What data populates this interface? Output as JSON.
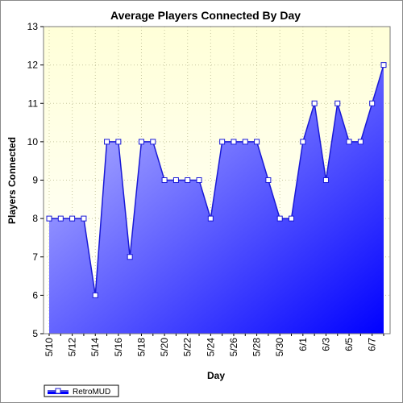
{
  "chart_data": {
    "type": "area",
    "title": "Average Players Connected By Day",
    "xlabel": "Day",
    "ylabel": "Players Connected",
    "ylim": [
      5,
      13
    ],
    "y_ticks": [
      5,
      6,
      7,
      8,
      9,
      10,
      11,
      12,
      13
    ],
    "grid": true,
    "legend_position": "bottom-left",
    "colors": {
      "line": "#1a1ad6",
      "fill_light": "#c8c8ff",
      "fill_dark": "#0000ff",
      "plot_bg_top": "#ffffd8",
      "plot_bg_bottom": "#ffffff"
    },
    "x_tick_labels": [
      "5/10",
      "5/12",
      "5/14",
      "5/16",
      "5/18",
      "5/20",
      "5/22",
      "5/24",
      "5/26",
      "5/28",
      "5/30",
      "6/1",
      "6/3",
      "6/5",
      "6/7"
    ],
    "categories": [
      "5/10",
      "5/11",
      "5/12",
      "5/13",
      "5/14",
      "5/15",
      "5/16",
      "5/17",
      "5/18",
      "5/19",
      "5/20",
      "5/21",
      "5/22",
      "5/23",
      "5/24",
      "5/25",
      "5/26",
      "5/27",
      "5/28",
      "5/29",
      "5/30",
      "5/31",
      "6/1",
      "6/2",
      "6/3",
      "6/4",
      "6/5",
      "6/6",
      "6/7",
      "6/8"
    ],
    "series": [
      {
        "name": "RetroMUD",
        "values": [
          8,
          8,
          8,
          8,
          6,
          10,
          10,
          7,
          10,
          10,
          9,
          9,
          9,
          9,
          8,
          10,
          10,
          10,
          10,
          9,
          8,
          8,
          10,
          11,
          9,
          11,
          10,
          10,
          11,
          12
        ]
      }
    ]
  }
}
